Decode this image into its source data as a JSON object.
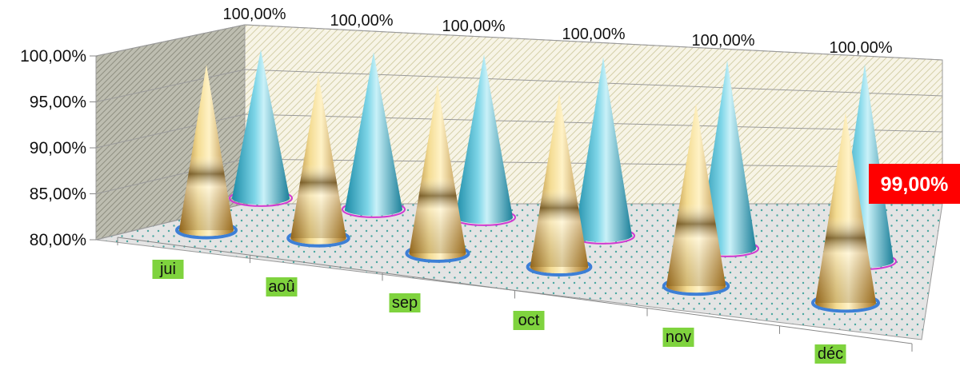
{
  "chart_data": {
    "type": "bar",
    "shape": "cone",
    "three_d": true,
    "categories": [
      "jui",
      "aoû",
      "sep",
      "oct",
      "nov",
      "déc"
    ],
    "series": [
      {
        "values": [
          99.3,
          98.7,
          98.2,
          97.8,
          97.2,
          96.9
        ],
        "color": "#d9a53a"
      },
      {
        "values": [
          100.0,
          100.0,
          100.0,
          100.0,
          100.0,
          100.0
        ],
        "color": "#3fb3cc"
      }
    ],
    "data_labels": [
      "100,00%",
      "100,00%",
      "100,00%",
      "100,00%",
      "100,00%",
      "100,00%"
    ],
    "yticks": [
      "80,00%",
      "85,00%",
      "90,00%",
      "95,00%",
      "100,00%"
    ],
    "ylim": [
      80,
      100
    ],
    "grid": true,
    "callout": {
      "text": "99,00%",
      "background": "#ff0000",
      "color": "#ffffff"
    },
    "category_label_background": "#7fd33e"
  }
}
